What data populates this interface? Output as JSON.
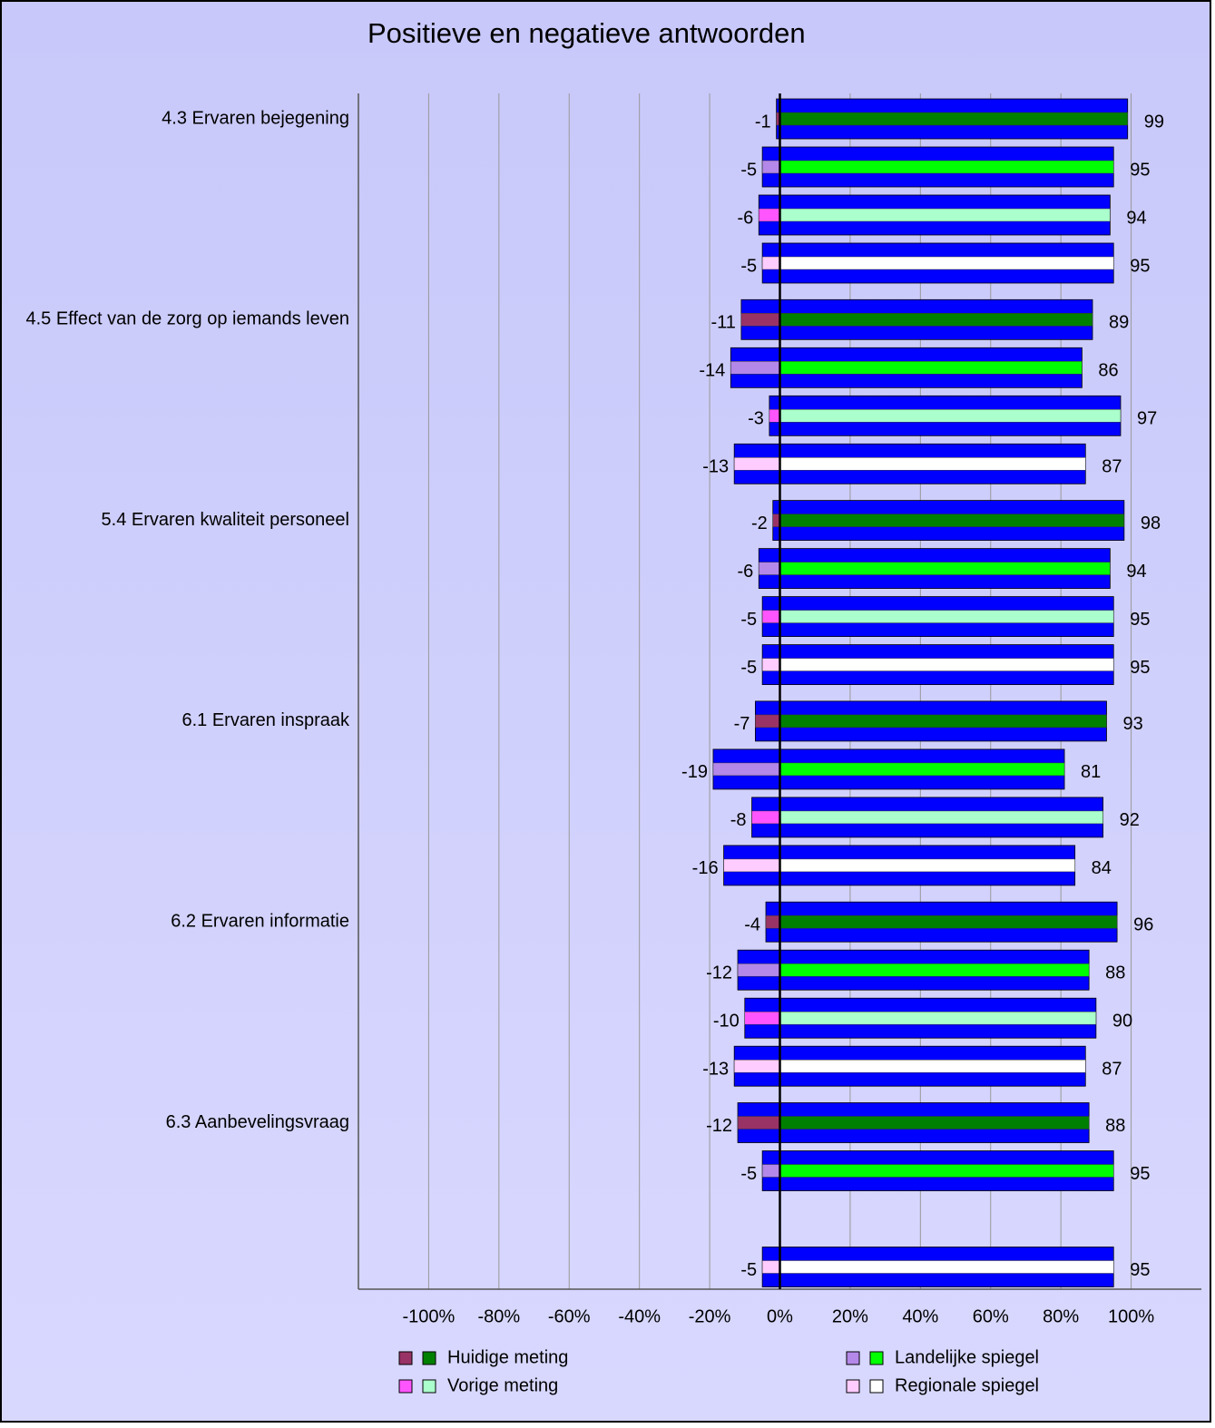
{
  "chart_data": {
    "type": "diverging-bar",
    "title": "Positieve en negatieve antwoorden",
    "categories": [
      "4.3 Ervaren bejegening",
      "4.5 Effect van de zorg op iemands leven",
      "5.4 Ervaren kwaliteit personeel",
      "6.1 Ervaren inspraak",
      "6.2 Ervaren informatie",
      "6.3 Aanbevelingsvraag"
    ],
    "bar_color": "#0000ff",
    "series": [
      {
        "name": "Huidige meting",
        "colors": [
          "#993366",
          "#008000"
        ],
        "negative": [
          -1,
          -11,
          -2,
          -7,
          -4,
          -12
        ],
        "positive": [
          99,
          89,
          98,
          93,
          96,
          88
        ]
      },
      {
        "name": "Landelijke spiegel",
        "colors": [
          "#b388e8",
          "#00ff00"
        ],
        "negative": [
          -5,
          -14,
          -6,
          -19,
          -12,
          -5
        ],
        "positive": [
          95,
          86,
          94,
          81,
          88,
          95
        ]
      },
      {
        "name": "Vorige meting",
        "colors": [
          "#ff55ff",
          "#aaffcc"
        ],
        "negative": [
          -6,
          -3,
          -5,
          -8,
          -10,
          null
        ],
        "positive": [
          94,
          97,
          95,
          92,
          90,
          null
        ]
      },
      {
        "name": "Regionale spiegel",
        "colors": [
          "#ffccff",
          "#ffffff"
        ],
        "negative": [
          -5,
          -13,
          -5,
          -16,
          -13,
          -5
        ],
        "positive": [
          95,
          87,
          95,
          84,
          87,
          95
        ]
      }
    ],
    "xlim": [
      -120,
      120
    ],
    "xticks": [
      {
        "value": -100,
        "label": "-100%"
      },
      {
        "value": -80,
        "label": "-80%"
      },
      {
        "value": -60,
        "label": "-60%"
      },
      {
        "value": -40,
        "label": "-40%"
      },
      {
        "value": -20,
        "label": "-20%"
      },
      {
        "value": 0,
        "label": "0%"
      },
      {
        "value": 20,
        "label": "20%"
      },
      {
        "value": 40,
        "label": "40%"
      },
      {
        "value": 60,
        "label": "60%"
      },
      {
        "value": 80,
        "label": "80%"
      },
      {
        "value": 100,
        "label": "100%"
      }
    ],
    "grid": true
  }
}
